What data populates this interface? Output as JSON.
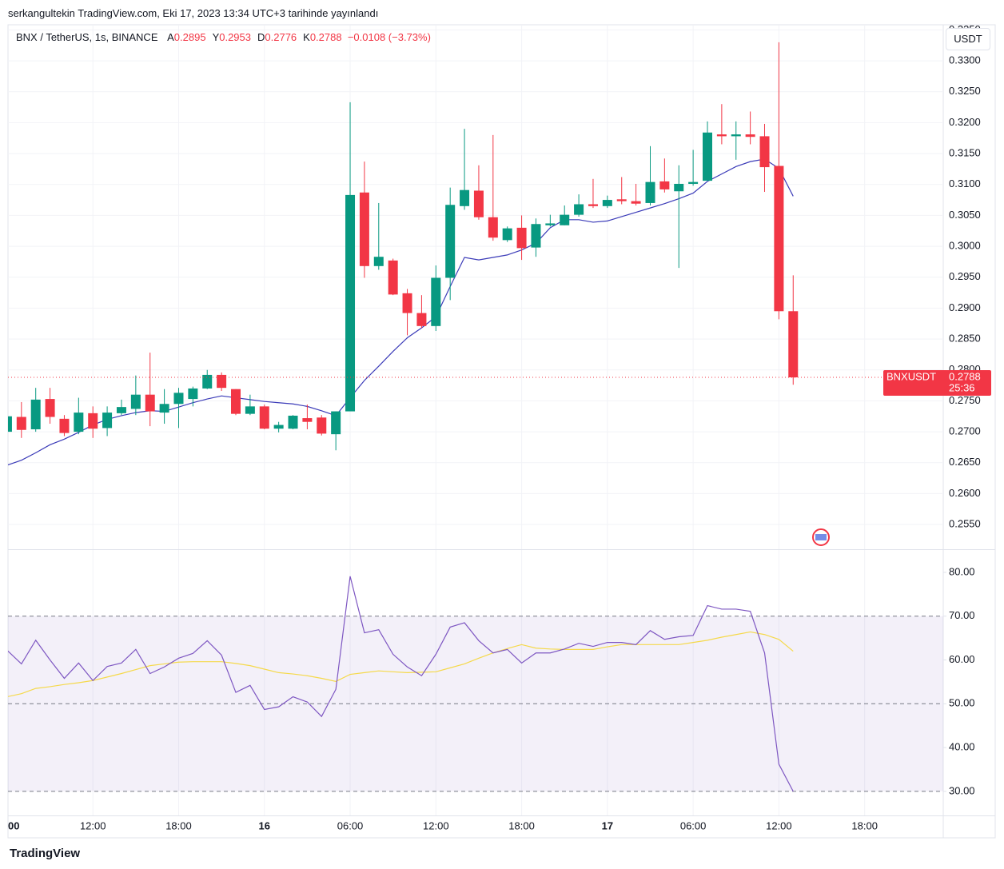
{
  "header": "serkangultekin TradingView.com, Eki 17, 2023 13:34 UTC+3 tarihinde yayınlandı",
  "footer": "TradingView",
  "chart_data": [
    {
      "type": "candlestick",
      "title": "BNX / TetherUS, 1s, BINANCE",
      "currency": "USDT",
      "ohlc": [
        {
          "name": "A",
          "value": 0.2895
        },
        {
          "name": "Y",
          "value": 0.2953
        },
        {
          "name": "D",
          "value": 0.2776
        },
        {
          "name": "K",
          "value": 0.2788
        }
      ],
      "change_label": "−0.0108 (−3.73%)",
      "categories": [
        "00",
        null,
        null,
        null,
        null,
        null,
        "12:00",
        null,
        null,
        null,
        null,
        null,
        "18:00",
        null,
        null,
        null,
        null,
        null,
        "16",
        null,
        null,
        null,
        null,
        null,
        "06:00",
        null,
        null,
        null,
        null,
        null,
        "12:00",
        null,
        null,
        null,
        null,
        null,
        "18:00",
        null,
        null,
        null,
        null,
        null,
        "17",
        null,
        null,
        null,
        null,
        null,
        "06:00",
        null,
        null,
        null,
        null,
        null,
        "12:00",
        null,
        null,
        null,
        null,
        null,
        "18:00",
        null,
        null,
        null,
        null,
        null
      ],
      "open": [
        0.27,
        0.2724,
        0.2704,
        0.2753,
        0.2721,
        0.27,
        0.273,
        0.2706,
        0.273,
        0.2737,
        0.276,
        0.2731,
        0.2745,
        0.2753,
        0.277,
        0.2792,
        0.2769,
        0.2729,
        0.2741,
        0.2705,
        0.2705,
        0.2722,
        0.2723,
        0.2696,
        0.2733,
        0.3087,
        0.2968,
        0.2977,
        0.2924,
        0.2892,
        0.2871,
        0.2949,
        0.3065,
        0.309,
        0.3047,
        0.301,
        0.303,
        0.2998,
        0.3034,
        0.3034,
        0.3051,
        0.3068,
        0.3065,
        0.3076,
        0.3073,
        0.307,
        0.3105,
        0.3089,
        0.3101,
        0.3106,
        0.3181,
        0.3178,
        0.3181,
        0.3178,
        0.313,
        0.2895,
        null,
        null,
        null,
        null,
        null,
        null,
        null,
        null,
        null,
        null
      ],
      "high": [
        0.273,
        0.2748,
        0.2771,
        0.2771,
        0.2727,
        0.2755,
        0.2741,
        0.2741,
        0.2752,
        0.2791,
        0.2828,
        0.2769,
        0.2771,
        0.2773,
        0.28,
        0.2796,
        0.2769,
        0.276,
        0.2744,
        0.2716,
        0.2727,
        0.2744,
        0.2727,
        0.2733,
        0.3233,
        0.3137,
        0.307,
        0.298,
        0.2931,
        0.2921,
        0.2969,
        0.3095,
        0.319,
        0.3131,
        0.318,
        0.3032,
        0.305,
        0.3045,
        0.3051,
        0.3066,
        0.3084,
        0.3109,
        0.3082,
        0.3112,
        0.3101,
        0.3162,
        0.3142,
        0.3131,
        0.3156,
        0.3202,
        0.323,
        0.3202,
        0.3218,
        0.3198,
        0.333,
        0.2953,
        null,
        null,
        null,
        null,
        null,
        null,
        null,
        null,
        null,
        null
      ],
      "low": [
        0.2695,
        0.269,
        0.27,
        0.2713,
        0.2693,
        0.2696,
        0.269,
        0.2693,
        0.2727,
        0.2727,
        0.2709,
        0.2713,
        0.2706,
        0.2741,
        0.2769,
        0.2766,
        0.2727,
        0.2727,
        0.2704,
        0.2699,
        0.2704,
        0.2704,
        0.2694,
        0.267,
        0.2733,
        0.2949,
        0.2962,
        0.2921,
        0.2856,
        0.2868,
        0.2863,
        0.2913,
        0.3059,
        0.3043,
        0.3009,
        0.3007,
        0.2978,
        0.2983,
        0.3032,
        0.3034,
        0.3048,
        0.3062,
        0.3062,
        0.3068,
        0.3066,
        0.3066,
        0.3087,
        0.2965,
        0.3098,
        0.3106,
        0.3165,
        0.314,
        0.3165,
        0.3088,
        0.2882,
        0.2776,
        null,
        null,
        null,
        null,
        null,
        null,
        null,
        null,
        null,
        null
      ],
      "close": [
        0.2725,
        0.2703,
        0.2752,
        0.2724,
        0.2698,
        0.2731,
        0.2705,
        0.2731,
        0.274,
        0.276,
        0.2733,
        0.2745,
        0.2763,
        0.277,
        0.2792,
        0.2771,
        0.2729,
        0.2741,
        0.2705,
        0.2711,
        0.2726,
        0.2716,
        0.2697,
        0.2733,
        0.3083,
        0.2968,
        0.2983,
        0.2922,
        0.2892,
        0.2871,
        0.2949,
        0.3067,
        0.3091,
        0.3047,
        0.3014,
        0.3029,
        0.2997,
        0.3036,
        0.3037,
        0.3051,
        0.3068,
        0.3065,
        0.3075,
        0.3073,
        0.3069,
        0.3104,
        0.3092,
        0.3101,
        0.3104,
        0.3184,
        0.3178,
        0.3181,
        0.3177,
        0.3128,
        0.2895,
        0.2788,
        null,
        null,
        null,
        null,
        null,
        null,
        null,
        null,
        null,
        null
      ],
      "up_color": "#089981",
      "down_color": "#f23645",
      "ma": {
        "color": "#3b3bb8",
        "values": [
          0.2646,
          0.2654,
          0.2666,
          0.2679,
          0.2688,
          0.2699,
          0.2711,
          0.272,
          0.2726,
          0.2731,
          0.2734,
          0.2733,
          0.274,
          0.2747,
          0.2753,
          0.2758,
          0.2755,
          0.2752,
          0.2749,
          0.2747,
          0.2745,
          0.2741,
          0.2734,
          0.2726,
          0.2755,
          0.2783,
          0.2806,
          0.283,
          0.2852,
          0.2868,
          0.2886,
          0.2935,
          0.2982,
          0.2978,
          0.2982,
          0.2986,
          0.2994,
          0.3005,
          0.303,
          0.3043,
          0.3043,
          0.3039,
          0.3041,
          0.3048,
          0.3055,
          0.3062,
          0.3069,
          0.3077,
          0.3086,
          0.3105,
          0.3117,
          0.3129,
          0.3137,
          0.3141,
          0.3126,
          0.3081,
          null,
          null,
          null,
          null,
          null,
          null,
          null,
          null,
          null,
          null
        ]
      },
      "last_price": {
        "name": "BNXUSDT",
        "value": 0.2788,
        "countdown": "25:36"
      },
      "ylim": [
        0.251,
        0.3357
      ],
      "yticks": [
        {
          "value": 0.255,
          "label": "0.2550"
        },
        {
          "value": 0.26,
          "label": "0.2600"
        },
        {
          "value": 0.265,
          "label": "0.2650"
        },
        {
          "value": 0.27,
          "label": "0.2700"
        },
        {
          "value": 0.275,
          "label": "0.2750"
        },
        {
          "value": 0.28,
          "label": "0.2800"
        },
        {
          "value": 0.285,
          "label": "0.2850"
        },
        {
          "value": 0.29,
          "label": "0.2900"
        },
        {
          "value": 0.295,
          "label": "0.2950"
        },
        {
          "value": 0.3,
          "label": "0.3000"
        },
        {
          "value": 0.305,
          "label": "0.3050"
        },
        {
          "value": 0.31,
          "label": "0.3100"
        },
        {
          "value": 0.315,
          "label": "0.3150"
        },
        {
          "value": 0.32,
          "label": "0.3200"
        },
        {
          "value": 0.325,
          "label": "0.3250"
        },
        {
          "value": 0.33,
          "label": "0.3300"
        },
        {
          "value": 0.335,
          "label": "0.3350"
        }
      ],
      "grid": true
    },
    {
      "type": "line",
      "series": [
        {
          "color": "#7e57c2",
          "values": [
            62.2,
            59.1,
            64.5,
            60,
            55.8,
            59.3,
            55.3,
            58.5,
            59.3,
            62.4,
            56.9,
            58.4,
            60.4,
            61.5,
            64.4,
            61.1,
            52.6,
            54.2,
            48.7,
            49.3,
            51.6,
            50.4,
            47.1,
            53.3,
            79.1,
            66.2,
            66.9,
            61.3,
            58.4,
            56.4,
            61.3,
            67.5,
            68.5,
            64.4,
            61.6,
            62.4,
            59.3,
            61.6,
            61.6,
            62.5,
            63.8,
            63.1,
            64,
            64,
            63.5,
            66.7,
            64.7,
            65.3,
            65.6,
            72.4,
            71.6,
            71.6,
            71.1,
            61.6,
            36.2,
            30,
            null,
            null,
            null,
            null,
            null,
            null,
            null,
            null,
            null,
            null
          ]
        },
        {
          "color": "#f5d94a",
          "values": [
            51.6,
            52.3,
            53.5,
            53.9,
            54.4,
            54.8,
            55.3,
            56.1,
            56.9,
            57.8,
            58.7,
            59.1,
            59.5,
            59.6,
            59.6,
            59.6,
            59.2,
            58.7,
            57.9,
            57.1,
            56.8,
            56.4,
            55.8,
            55.1,
            56.7,
            57.1,
            57.5,
            57.3,
            57.1,
            57.2,
            57.3,
            58.2,
            59.1,
            60.4,
            61.6,
            62.6,
            63.5,
            62.7,
            62.5,
            62.4,
            62.4,
            62.4,
            63,
            63.5,
            63.5,
            63.5,
            63.5,
            63.5,
            64,
            64.5,
            65.2,
            65.8,
            66.4,
            65.8,
            64.7,
            62,
            null,
            null,
            null,
            null,
            null,
            null,
            null,
            null,
            null,
            null
          ]
        }
      ],
      "levels": [
        70,
        50,
        30
      ],
      "band_color": "#7e57c2",
      "ylim": [
        24.5,
        85.1
      ],
      "yticks": [
        {
          "value": 30,
          "label": "30.00"
        },
        {
          "value": 40,
          "label": "40.00"
        },
        {
          "value": 50,
          "label": "50.00"
        },
        {
          "value": 60,
          "label": "60.00"
        },
        {
          "value": 70,
          "label": "70.00"
        },
        {
          "value": 80,
          "label": "80.00"
        }
      ]
    }
  ]
}
